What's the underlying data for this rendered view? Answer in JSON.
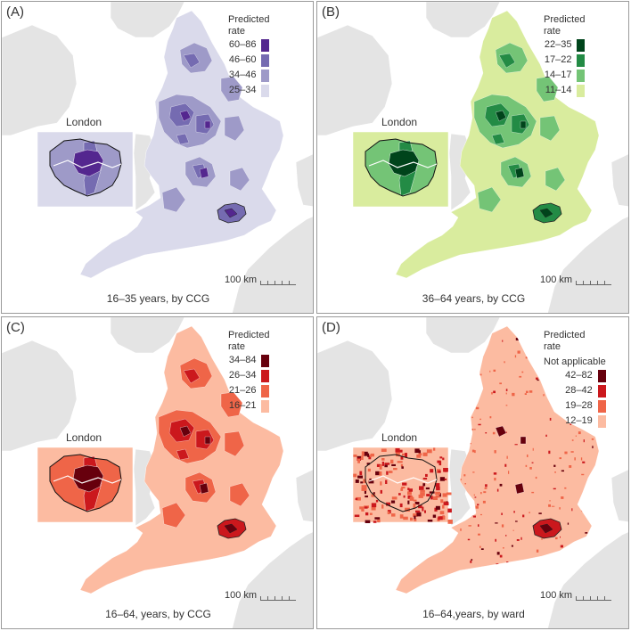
{
  "panels": [
    {
      "label": "(A)",
      "legend_title": "Predicted\nrate",
      "not_applicable": "",
      "legend": [
        {
          "text": "60–86",
          "color": "#54278f"
        },
        {
          "text": "46–60",
          "color": "#756bb1"
        },
        {
          "text": "34–46",
          "color": "#9e9ac8"
        },
        {
          "text": "25–34",
          "color": "#dadaeb"
        }
      ],
      "scale": "100 km",
      "inset_label": "London",
      "caption": "16–35 years, by CCG",
      "colors": {
        "base": "#dadaeb",
        "c2": "#9e9ac8",
        "c3": "#756bb1",
        "c4": "#54278f"
      }
    },
    {
      "label": "(B)",
      "legend_title": "Predicted\nrate",
      "not_applicable": "",
      "legend": [
        {
          "text": "22–35",
          "color": "#00441b"
        },
        {
          "text": "17–22",
          "color": "#238b45"
        },
        {
          "text": "14–17",
          "color": "#74c476"
        },
        {
          "text": "11–14",
          "color": "#d9ec9e"
        }
      ],
      "scale": "100 km",
      "inset_label": "London",
      "caption": "36–64 years, by CCG",
      "colors": {
        "base": "#d9ec9e",
        "c2": "#74c476",
        "c3": "#238b45",
        "c4": "#00441b"
      }
    },
    {
      "label": "(C)",
      "legend_title": "Predicted\nrate",
      "not_applicable": "",
      "legend": [
        {
          "text": "34–84",
          "color": "#67000d"
        },
        {
          "text": "26–34",
          "color": "#cb181d"
        },
        {
          "text": "21–26",
          "color": "#ef6548"
        },
        {
          "text": "16–21",
          "color": "#fcbba1"
        }
      ],
      "scale": "100 km",
      "inset_label": "London",
      "caption": "16–64, years, by CCG",
      "colors": {
        "base": "#fcbba1",
        "c2": "#ef6548",
        "c3": "#cb181d",
        "c4": "#67000d"
      }
    },
    {
      "label": "(D)",
      "legend_title": "Predicted\nrate",
      "not_applicable": "Not applicable",
      "legend": [
        {
          "text": "42–82",
          "color": "#67000d"
        },
        {
          "text": "28–42",
          "color": "#cb181d"
        },
        {
          "text": "19–28",
          "color": "#ef6548"
        },
        {
          "text": "12–19",
          "color": "#fcbba1"
        }
      ],
      "scale": "100 km",
      "inset_label": "London",
      "caption": "16–64,years, by ward",
      "colors": {
        "base": "#fcbba1",
        "c2": "#ef6548",
        "c3": "#cb181d",
        "c4": "#67000d"
      }
    }
  ],
  "land_color": "#e4e4e4"
}
